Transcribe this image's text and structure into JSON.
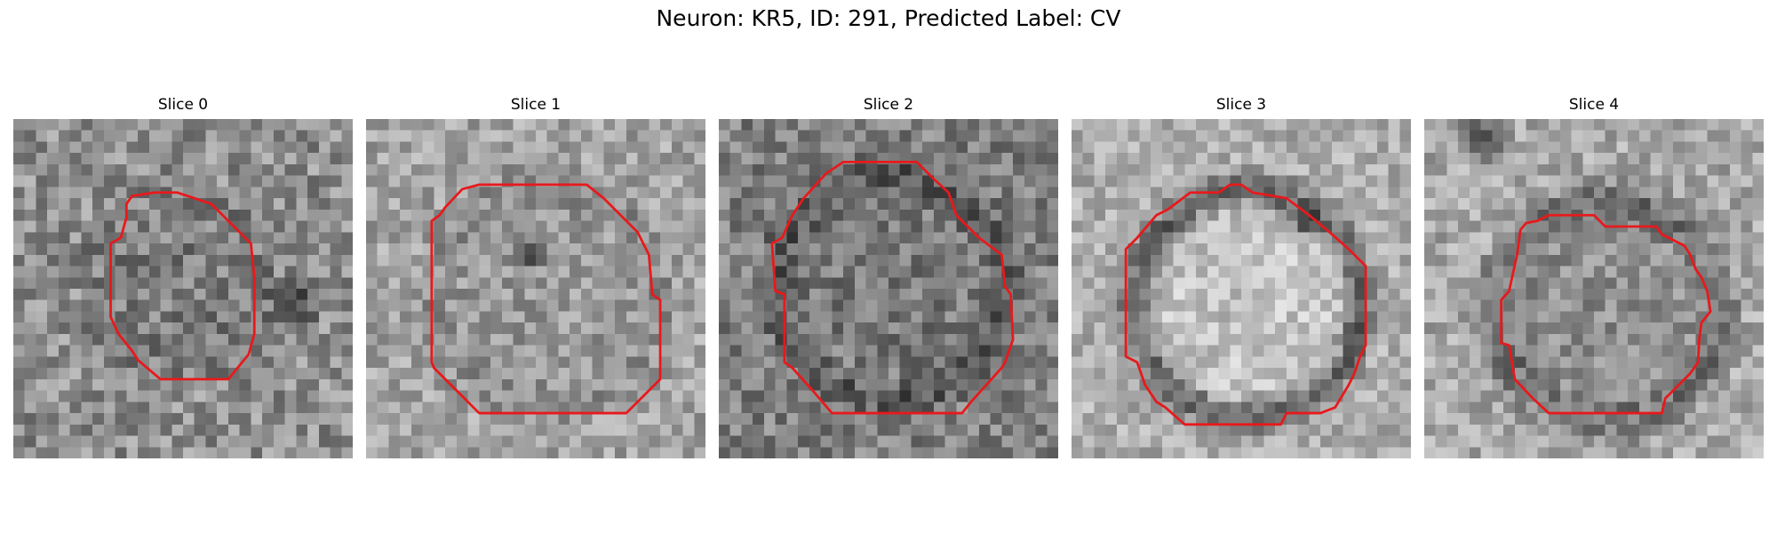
{
  "figure": {
    "title": "Neuron: KR5, ID: 291, Predicted Label: CV"
  },
  "panels": [
    {
      "title": "Slice 0"
    },
    {
      "title": "Slice 1"
    },
    {
      "title": "Slice 2"
    },
    {
      "title": "Slice 3"
    },
    {
      "title": "Slice 4"
    }
  ],
  "style": {
    "contour_color": "#e8191c"
  }
}
